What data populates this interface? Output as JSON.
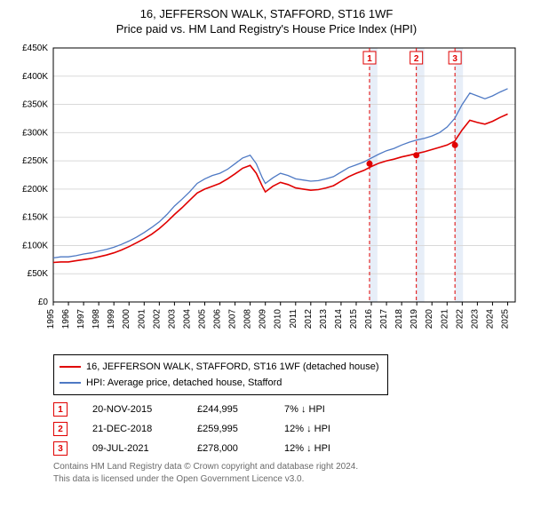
{
  "title": "16, JEFFERSON WALK, STAFFORD, ST16 1WF",
  "subtitle": "Price paid vs. HM Land Registry's House Price Index (HPI)",
  "chart": {
    "type": "line",
    "background_color": "#ffffff",
    "plot_border_color": "#000000",
    "grid_color": "#d9d9d9",
    "xlim": [
      1995,
      2025.5
    ],
    "ylim": [
      0,
      450000
    ],
    "ytick_step": 50000,
    "ytick_labels": [
      "£0",
      "£50K",
      "£100K",
      "£150K",
      "£200K",
      "£250K",
      "£300K",
      "£350K",
      "£400K",
      "£450K"
    ],
    "xticks": [
      1995,
      1996,
      1997,
      1998,
      1999,
      2000,
      2001,
      2002,
      2003,
      2004,
      2005,
      2006,
      2007,
      2008,
      2009,
      2010,
      2011,
      2012,
      2013,
      2014,
      2015,
      2016,
      2017,
      2018,
      2019,
      2020,
      2021,
      2022,
      2023,
      2024,
      2025
    ],
    "axis_fontsize": 10,
    "shaded_bands": [
      {
        "from": 2015.88,
        "to": 2016.4,
        "color": "#e7eef8"
      },
      {
        "from": 2018.97,
        "to": 2019.5,
        "color": "#e7eef8"
      },
      {
        "from": 2021.52,
        "to": 2022.05,
        "color": "#e7eef8"
      }
    ],
    "event_lines": [
      {
        "x": 2015.88,
        "label": "1"
      },
      {
        "x": 2018.97,
        "label": "2"
      },
      {
        "x": 2021.52,
        "label": "3"
      }
    ],
    "event_line_color": "#e00000",
    "event_line_dash": "4,3",
    "event_box_border": "#e00000",
    "event_box_text": "#e00000",
    "series": [
      {
        "name": "hpi",
        "label": "HPI: Average price, detached house, Stafford",
        "color": "#4e79c4",
        "line_width": 1.3,
        "x": [
          1995,
          1995.5,
          1996,
          1996.5,
          1997,
          1997.5,
          1998,
          1998.5,
          1999,
          1999.5,
          2000,
          2000.5,
          2001,
          2001.5,
          2002,
          2002.5,
          2003,
          2003.5,
          2004,
          2004.5,
          2005,
          2005.5,
          2006,
          2006.5,
          2007,
          2007.5,
          2008,
          2008.4,
          2008.8,
          2009,
          2009.5,
          2010,
          2010.5,
          2011,
          2011.5,
          2012,
          2012.5,
          2013,
          2013.5,
          2014,
          2014.5,
          2015,
          2015.5,
          2016,
          2016.5,
          2017,
          2017.5,
          2018,
          2018.5,
          2019,
          2019.5,
          2020,
          2020.5,
          2021,
          2021.5,
          2022,
          2022.5,
          2023,
          2023.5,
          2024,
          2024.5,
          2025
        ],
        "y": [
          78000,
          80000,
          80000,
          82000,
          85000,
          87000,
          90000,
          93000,
          97000,
          102000,
          108000,
          115000,
          123000,
          132000,
          142000,
          155000,
          170000,
          182000,
          195000,
          210000,
          218000,
          224000,
          228000,
          235000,
          245000,
          255000,
          260000,
          245000,
          220000,
          210000,
          220000,
          228000,
          224000,
          218000,
          216000,
          214000,
          215000,
          218000,
          222000,
          230000,
          238000,
          243000,
          248000,
          255000,
          262000,
          268000,
          272000,
          278000,
          283000,
          287000,
          290000,
          294000,
          300000,
          310000,
          325000,
          350000,
          370000,
          365000,
          360000,
          365000,
          372000,
          378000
        ]
      },
      {
        "name": "price_paid",
        "label": "16, JEFFERSON WALK, STAFFORD, ST16 1WF (detached house)",
        "color": "#e00000",
        "line_width": 1.6,
        "x": [
          1995,
          1995.5,
          1996,
          1996.5,
          1997,
          1997.5,
          1998,
          1998.5,
          1999,
          1999.5,
          2000,
          2000.5,
          2001,
          2001.5,
          2002,
          2002.5,
          2003,
          2003.5,
          2004,
          2004.5,
          2005,
          2005.5,
          2006,
          2006.5,
          2007,
          2007.5,
          2008,
          2008.4,
          2008.8,
          2009,
          2009.5,
          2010,
          2010.5,
          2011,
          2011.5,
          2012,
          2012.5,
          2013,
          2013.5,
          2014,
          2014.5,
          2015,
          2015.5,
          2016,
          2016.5,
          2017,
          2017.5,
          2018,
          2018.5,
          2019,
          2019.5,
          2020,
          2020.5,
          2021,
          2021.5,
          2022,
          2022.5,
          2023,
          2023.5,
          2024,
          2024.5,
          2025
        ],
        "y": [
          70000,
          71000,
          71000,
          73000,
          75000,
          77000,
          80000,
          83000,
          87000,
          92000,
          98000,
          105000,
          112000,
          120000,
          130000,
          142000,
          155000,
          167000,
          180000,
          193000,
          200000,
          205000,
          210000,
          218000,
          227000,
          237000,
          242000,
          228000,
          205000,
          195000,
          205000,
          212000,
          208000,
          202000,
          200000,
          198000,
          199000,
          202000,
          206000,
          214000,
          222000,
          228000,
          233000,
          240000,
          246000,
          250000,
          253000,
          257000,
          260000,
          263000,
          266000,
          270000,
          274000,
          278000,
          285000,
          305000,
          322000,
          318000,
          315000,
          320000,
          327000,
          333000
        ]
      }
    ],
    "sale_markers": [
      {
        "x": 2015.88,
        "y": 244995,
        "color": "#e00000",
        "radius": 3.5
      },
      {
        "x": 2018.97,
        "y": 259995,
        "color": "#e00000",
        "radius": 3.5
      },
      {
        "x": 2021.52,
        "y": 278000,
        "color": "#e00000",
        "radius": 3.5
      }
    ]
  },
  "legend": {
    "border_color": "#000000",
    "items": [
      {
        "color": "#e00000",
        "label": "16, JEFFERSON WALK, STAFFORD, ST16 1WF (detached house)"
      },
      {
        "color": "#4e79c4",
        "label": "HPI: Average price, detached house, Stafford"
      }
    ]
  },
  "events": [
    {
      "num": "1",
      "date": "20-NOV-2015",
      "price": "£244,995",
      "delta": "7% ↓ HPI"
    },
    {
      "num": "2",
      "date": "21-DEC-2018",
      "price": "£259,995",
      "delta": "12% ↓ HPI"
    },
    {
      "num": "3",
      "date": "09-JUL-2021",
      "price": "£278,000",
      "delta": "12% ↓ HPI"
    }
  ],
  "footer": {
    "line1": "Contains HM Land Registry data © Crown copyright and database right 2024.",
    "line2": "This data is licensed under the Open Government Licence v3.0."
  }
}
